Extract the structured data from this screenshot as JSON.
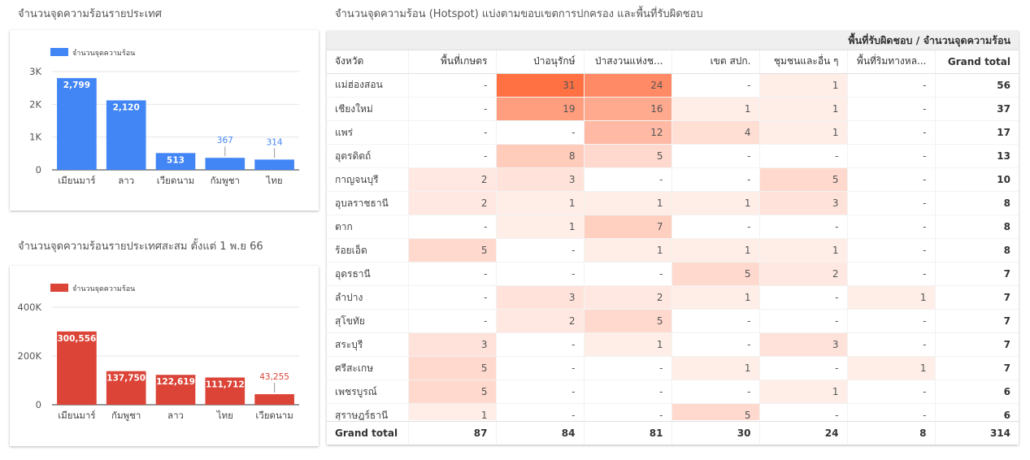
{
  "chart_data": [
    {
      "type": "bar",
      "title": "จำนวนจุดความร้อนรายประเทศ",
      "legend": "จำนวนจุดความร้อน",
      "legend_placement": "top-left",
      "color": "#4285f4",
      "categories": [
        "เมียนมาร์",
        "ลาว",
        "เวียดนาม",
        "กัมพูชา",
        "ไทย"
      ],
      "values": [
        2799,
        2120,
        513,
        367,
        314
      ],
      "value_labels": [
        "2,799",
        "2,120",
        "513",
        "367",
        "314"
      ],
      "yticks": [
        0,
        1000,
        2000,
        3000
      ],
      "ytick_labels": [
        "0",
        "1K",
        "2K",
        "3K"
      ],
      "ylim": [
        0,
        3000
      ],
      "grid": true
    },
    {
      "type": "bar",
      "title": "จำนวนจุดความร้อนรายประเทศสะสม ตั้งแต่ 1 พ.ย 66",
      "legend": "จำนวนจุดความร้อน",
      "legend_placement": "top-left",
      "color": "#db4437",
      "categories": [
        "เมียนมาร์",
        "กัมพูชา",
        "ลาว",
        "ไทย",
        "เวียดนาม"
      ],
      "values": [
        300556,
        137750,
        122619,
        111712,
        43255
      ],
      "value_labels": [
        "300,556",
        "137,750",
        "122,619",
        "111,712",
        "43,255"
      ],
      "yticks": [
        0,
        200000,
        400000
      ],
      "ytick_labels": [
        "0",
        "200K",
        "400K"
      ],
      "ylim": [
        0,
        400000
      ],
      "grid": true
    },
    {
      "type": "table",
      "title": "จำนวนจุดความร้อน (Hotspot) แบ่งตามขอบเขตการปกครอง และพื้นที่รับผิดชอบ",
      "column_group_header": "พื้นที่รับผิดชอบ / จำนวนจุดความร้อน",
      "row_header": "จังหวัด",
      "columns": [
        "พื้นที่เกษตร",
        "ป่าอนุรักษ์",
        "ป่าสงวนแห่งช...",
        "เขต สปก.",
        "ชุมชนและอื่น ๆ",
        "พื้นที่ริมทางหล..."
      ],
      "total_label": "Grand total",
      "heat_color": "#ff7043",
      "rows": [
        {
          "province": "แม่ฮ่องสอน",
          "values": [
            "-",
            "31",
            "24",
            "-",
            "1",
            "-"
          ],
          "total": "56"
        },
        {
          "province": "เชียงใหม่",
          "values": [
            "-",
            "19",
            "16",
            "1",
            "1",
            "-"
          ],
          "total": "37"
        },
        {
          "province": "แพร่",
          "values": [
            "-",
            "-",
            "12",
            "4",
            "1",
            "-"
          ],
          "total": "17"
        },
        {
          "province": "อุตรดิตถ์",
          "values": [
            "-",
            "8",
            "5",
            "-",
            "-",
            "-"
          ],
          "total": "13"
        },
        {
          "province": "กาญจนบุรี",
          "values": [
            "2",
            "3",
            "-",
            "-",
            "5",
            "-"
          ],
          "total": "10"
        },
        {
          "province": "อุบลราชธานี",
          "values": [
            "2",
            "1",
            "1",
            "1",
            "3",
            "-"
          ],
          "total": "8"
        },
        {
          "province": "ตาก",
          "values": [
            "-",
            "1",
            "7",
            "-",
            "-",
            "-"
          ],
          "total": "8"
        },
        {
          "province": "ร้อยเอ็ด",
          "values": [
            "5",
            "-",
            "1",
            "1",
            "1",
            "-"
          ],
          "total": "8"
        },
        {
          "province": "อุดรธานี",
          "values": [
            "-",
            "-",
            "-",
            "5",
            "2",
            "-"
          ],
          "total": "7"
        },
        {
          "province": "ลำปาง",
          "values": [
            "-",
            "3",
            "2",
            "1",
            "-",
            "1"
          ],
          "total": "7"
        },
        {
          "province": "สุโขทัย",
          "values": [
            "-",
            "2",
            "5",
            "-",
            "-",
            "-"
          ],
          "total": "7"
        },
        {
          "province": "สระบุรี",
          "values": [
            "3",
            "-",
            "1",
            "-",
            "3",
            "-"
          ],
          "total": "7"
        },
        {
          "province": "ศรีสะเกษ",
          "values": [
            "5",
            "-",
            "-",
            "1",
            "-",
            "1"
          ],
          "total": "7"
        },
        {
          "province": "เพชรบูรณ์",
          "values": [
            "5",
            "-",
            "-",
            "-",
            "1",
            "-"
          ],
          "total": "6"
        },
        {
          "province": "สุราษฎร์ธานี",
          "values": [
            "1",
            "-",
            "-",
            "5",
            "-",
            "-"
          ],
          "total": "6"
        }
      ],
      "column_totals": [
        "87",
        "84",
        "81",
        "30",
        "24",
        "8"
      ],
      "grand_total": "314"
    }
  ]
}
